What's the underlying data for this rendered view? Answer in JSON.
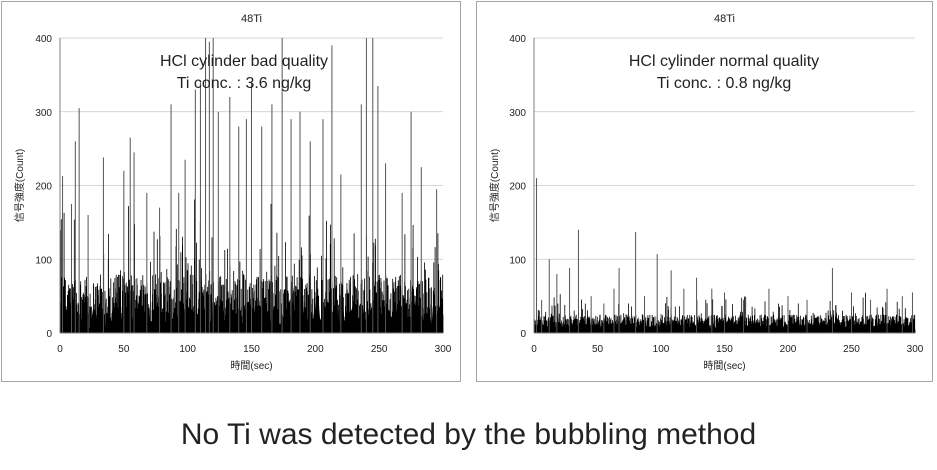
{
  "footer_text": "No Ti was detected by the bubbling method",
  "chart_data": [
    {
      "type": "line",
      "title": "48Ti",
      "xlabel": "時間(sec)",
      "ylabel": "信号強度(Count)",
      "xlim": [
        0,
        300
      ],
      "ylim": [
        0,
        400
      ],
      "xticks": [
        0,
        50,
        100,
        150,
        200,
        250,
        300
      ],
      "yticks": [
        0,
        100,
        200,
        300,
        400
      ],
      "grid": true,
      "legend": "none",
      "color": "#000000",
      "annotations": [
        "HCl cylinder bad quality",
        "Ti conc. : 3.6 ng/kg"
      ],
      "baseline_noise": {
        "low": 5,
        "high": 80
      },
      "spikes": [
        {
          "x": 2,
          "y": 213
        },
        {
          "x": 9,
          "y": 175
        },
        {
          "x": 12,
          "y": 260
        },
        {
          "x": 15,
          "y": 305
        },
        {
          "x": 22,
          "y": 160
        },
        {
          "x": 34,
          "y": 238
        },
        {
          "x": 50,
          "y": 220
        },
        {
          "x": 55,
          "y": 265
        },
        {
          "x": 58,
          "y": 245
        },
        {
          "x": 68,
          "y": 190
        },
        {
          "x": 78,
          "y": 170
        },
        {
          "x": 87,
          "y": 310
        },
        {
          "x": 93,
          "y": 190
        },
        {
          "x": 98,
          "y": 235
        },
        {
          "x": 106,
          "y": 330
        },
        {
          "x": 110,
          "y": 340
        },
        {
          "x": 114,
          "y": 400
        },
        {
          "x": 117,
          "y": 395
        },
        {
          "x": 120,
          "y": 400
        },
        {
          "x": 124,
          "y": 300
        },
        {
          "x": 133,
          "y": 320
        },
        {
          "x": 140,
          "y": 280
        },
        {
          "x": 146,
          "y": 290
        },
        {
          "x": 150,
          "y": 340
        },
        {
          "x": 158,
          "y": 280
        },
        {
          "x": 166,
          "y": 310
        },
        {
          "x": 174,
          "y": 400
        },
        {
          "x": 181,
          "y": 290
        },
        {
          "x": 188,
          "y": 300
        },
        {
          "x": 196,
          "y": 260
        },
        {
          "x": 206,
          "y": 290
        },
        {
          "x": 213,
          "y": 390
        },
        {
          "x": 220,
          "y": 215
        },
        {
          "x": 236,
          "y": 310
        },
        {
          "x": 240,
          "y": 400
        },
        {
          "x": 245,
          "y": 400
        },
        {
          "x": 249,
          "y": 335
        },
        {
          "x": 255,
          "y": 230
        },
        {
          "x": 268,
          "y": 190
        },
        {
          "x": 275,
          "y": 300
        },
        {
          "x": 283,
          "y": 225
        },
        {
          "x": 295,
          "y": 195
        }
      ]
    },
    {
      "type": "line",
      "title": "48Ti",
      "xlabel": "時間(sec)",
      "ylabel": "信号強度(Count)",
      "xlim": [
        0,
        300
      ],
      "ylim": [
        0,
        400
      ],
      "xticks": [
        0,
        50,
        100,
        150,
        200,
        250,
        300
      ],
      "yticks": [
        0,
        100,
        200,
        300,
        400
      ],
      "grid": true,
      "legend": "none",
      "color": "#000000",
      "annotations": [
        "HCl cylinder normal quality",
        "Ti conc. : 0.8 ng/kg"
      ],
      "baseline_noise": {
        "low": 5,
        "high": 25
      },
      "spikes": [
        {
          "x": 2,
          "y": 210
        },
        {
          "x": 6,
          "y": 45
        },
        {
          "x": 12,
          "y": 100
        },
        {
          "x": 18,
          "y": 80
        },
        {
          "x": 28,
          "y": 88
        },
        {
          "x": 35,
          "y": 140
        },
        {
          "x": 45,
          "y": 50
        },
        {
          "x": 55,
          "y": 40
        },
        {
          "x": 63,
          "y": 60
        },
        {
          "x": 67,
          "y": 88
        },
        {
          "x": 80,
          "y": 137
        },
        {
          "x": 87,
          "y": 50
        },
        {
          "x": 97,
          "y": 107
        },
        {
          "x": 108,
          "y": 85
        },
        {
          "x": 118,
          "y": 60
        },
        {
          "x": 128,
          "y": 75
        },
        {
          "x": 140,
          "y": 60
        },
        {
          "x": 150,
          "y": 55
        },
        {
          "x": 165,
          "y": 45
        },
        {
          "x": 185,
          "y": 60
        },
        {
          "x": 200,
          "y": 50
        },
        {
          "x": 215,
          "y": 45
        },
        {
          "x": 235,
          "y": 88
        },
        {
          "x": 250,
          "y": 55
        },
        {
          "x": 265,
          "y": 45
        },
        {
          "x": 278,
          "y": 60
        },
        {
          "x": 290,
          "y": 50
        },
        {
          "x": 298,
          "y": 55
        }
      ]
    }
  ]
}
